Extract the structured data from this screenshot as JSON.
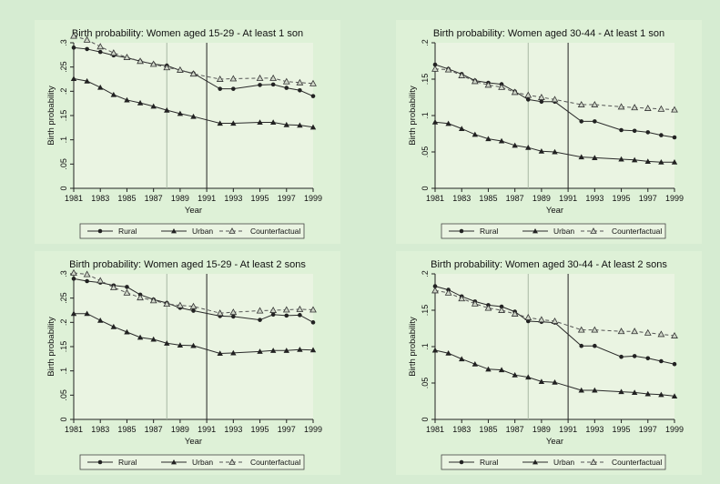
{
  "legend": {
    "rural": "Rural",
    "urban": "Urban",
    "counterfactual": "Counterfactual"
  },
  "chart_data": [
    {
      "type": "line",
      "title": "Birth probability: Women aged 15-29 - At least 1 son",
      "xlabel": "Year",
      "ylabel": "Birth probability",
      "x_ticks": [
        "1981",
        "1983",
        "1985",
        "1987",
        "1989",
        "1991",
        "1993",
        "1995",
        "1997",
        "1999"
      ],
      "y_ticks": [
        "0",
        ".05",
        ".1",
        ".15",
        ".2",
        ".25",
        ".3"
      ],
      "ylim": [
        0,
        0.3
      ],
      "xlim": [
        1981,
        1999
      ],
      "reference_lines": [
        1988,
        1991
      ],
      "legend_position": "bottom",
      "x": [
        1981,
        1982,
        1983,
        1984,
        1985,
        1986,
        1987,
        1988,
        1989,
        1990,
        1992,
        1993,
        1995,
        1996,
        1997,
        1998,
        1999
      ],
      "series": [
        {
          "name": "Rural",
          "marker": "circle",
          "values": [
            0.29,
            0.287,
            0.281,
            0.274,
            0.269,
            0.262,
            0.256,
            0.253,
            0.243,
            0.237,
            0.205,
            0.205,
            0.213,
            0.214,
            0.207,
            0.202,
            0.19
          ]
        },
        {
          "name": "Urban",
          "marker": "triangle",
          "values": [
            0.226,
            0.221,
            0.208,
            0.193,
            0.182,
            0.176,
            0.169,
            0.161,
            0.154,
            0.148,
            0.134,
            0.134,
            0.136,
            0.136,
            0.131,
            0.13,
            0.126
          ]
        },
        {
          "name": "Counterfactual",
          "marker": "triangle-open",
          "values": [
            0.314,
            0.306,
            0.292,
            0.279,
            0.27,
            0.262,
            0.256,
            0.249,
            0.244,
            0.236,
            0.225,
            0.226,
            0.227,
            0.227,
            0.22,
            0.218,
            0.216
          ]
        }
      ]
    },
    {
      "type": "line",
      "title": "Birth probability: Women aged 30-44 - At least 1 son",
      "xlabel": "Year",
      "ylabel": "Birth probability",
      "x_ticks": [
        "1981",
        "1983",
        "1985",
        "1987",
        "1989",
        "1991",
        "1993",
        "1995",
        "1997",
        "1999"
      ],
      "y_ticks": [
        "0",
        ".05",
        ".1",
        ".15",
        ".2"
      ],
      "ylim": [
        0,
        0.2
      ],
      "xlim": [
        1981,
        1999
      ],
      "reference_lines": [
        1988,
        1991
      ],
      "legend_position": "bottom",
      "x": [
        1981,
        1982,
        1983,
        1984,
        1985,
        1986,
        1987,
        1988,
        1989,
        1990,
        1992,
        1993,
        1995,
        1996,
        1997,
        1998,
        1999
      ],
      "series": [
        {
          "name": "Rural",
          "marker": "circle",
          "values": [
            0.17,
            0.164,
            0.157,
            0.148,
            0.145,
            0.143,
            0.133,
            0.122,
            0.119,
            0.119,
            0.092,
            0.092,
            0.08,
            0.079,
            0.077,
            0.073,
            0.07
          ]
        },
        {
          "name": "Urban",
          "marker": "triangle",
          "values": [
            0.091,
            0.089,
            0.082,
            0.074,
            0.068,
            0.065,
            0.059,
            0.056,
            0.051,
            0.05,
            0.043,
            0.042,
            0.04,
            0.039,
            0.037,
            0.036,
            0.036
          ]
        },
        {
          "name": "Counterfactual",
          "marker": "triangle-open",
          "values": [
            0.164,
            0.163,
            0.155,
            0.147,
            0.142,
            0.139,
            0.132,
            0.128,
            0.125,
            0.122,
            0.115,
            0.115,
            0.112,
            0.111,
            0.11,
            0.109,
            0.108
          ]
        }
      ]
    },
    {
      "type": "line",
      "title": "Birth probability: Women aged 15-29 - At least 2 sons",
      "xlabel": "Year",
      "ylabel": "Birth probability",
      "x_ticks": [
        "1981",
        "1983",
        "1985",
        "1987",
        "1989",
        "1991",
        "1993",
        "1995",
        "1997",
        "1999"
      ],
      "y_ticks": [
        "0",
        ".05",
        ".1",
        ".15",
        ".2",
        ".25",
        ".3"
      ],
      "ylim": [
        0,
        0.3
      ],
      "xlim": [
        1981,
        1999
      ],
      "reference_lines": [
        1988,
        1991
      ],
      "legend_position": "bottom",
      "x": [
        1981,
        1982,
        1983,
        1984,
        1985,
        1986,
        1987,
        1988,
        1989,
        1990,
        1992,
        1993,
        1995,
        1996,
        1997,
        1998,
        1999
      ],
      "series": [
        {
          "name": "Rural",
          "marker": "circle",
          "values": [
            0.29,
            0.285,
            0.282,
            0.276,
            0.273,
            0.257,
            0.247,
            0.24,
            0.23,
            0.224,
            0.213,
            0.212,
            0.205,
            0.216,
            0.214,
            0.215,
            0.2
          ]
        },
        {
          "name": "Urban",
          "marker": "triangle",
          "values": [
            0.218,
            0.218,
            0.204,
            0.191,
            0.18,
            0.169,
            0.165,
            0.157,
            0.153,
            0.152,
            0.136,
            0.137,
            0.14,
            0.142,
            0.142,
            0.144,
            0.143
          ]
        },
        {
          "name": "Counterfactual",
          "marker": "triangle-open",
          "values": [
            0.302,
            0.299,
            0.286,
            0.272,
            0.261,
            0.251,
            0.245,
            0.238,
            0.235,
            0.233,
            0.219,
            0.221,
            0.224,
            0.225,
            0.226,
            0.227,
            0.226
          ]
        }
      ]
    },
    {
      "type": "line",
      "title": "Birth probability: Women aged 30-44 - At least 2 sons",
      "xlabel": "Year",
      "ylabel": "Birth probability",
      "x_ticks": [
        "1981",
        "1983",
        "1985",
        "1987",
        "1989",
        "1991",
        "1993",
        "1995",
        "1997",
        "1999"
      ],
      "y_ticks": [
        "0",
        ".05",
        ".1",
        ".15",
        ".2"
      ],
      "ylim": [
        0,
        0.2
      ],
      "xlim": [
        1981,
        1999
      ],
      "reference_lines": [
        1988,
        1991
      ],
      "legend_position": "bottom",
      "x": [
        1981,
        1982,
        1983,
        1984,
        1985,
        1986,
        1987,
        1988,
        1989,
        1990,
        1992,
        1993,
        1995,
        1996,
        1997,
        1998,
        1999
      ],
      "series": [
        {
          "name": "Rural",
          "marker": "circle",
          "values": [
            0.183,
            0.178,
            0.169,
            0.162,
            0.157,
            0.155,
            0.148,
            0.135,
            0.134,
            0.133,
            0.101,
            0.101,
            0.086,
            0.087,
            0.084,
            0.08,
            0.076
          ]
        },
        {
          "name": "Urban",
          "marker": "triangle",
          "values": [
            0.095,
            0.091,
            0.083,
            0.076,
            0.069,
            0.068,
            0.061,
            0.058,
            0.052,
            0.051,
            0.04,
            0.04,
            0.038,
            0.037,
            0.035,
            0.034,
            0.032
          ]
        },
        {
          "name": "Counterfactual",
          "marker": "triangle-open",
          "values": [
            0.177,
            0.174,
            0.166,
            0.159,
            0.153,
            0.15,
            0.145,
            0.14,
            0.137,
            0.135,
            0.123,
            0.123,
            0.121,
            0.121,
            0.119,
            0.117,
            0.115
          ]
        }
      ]
    }
  ]
}
